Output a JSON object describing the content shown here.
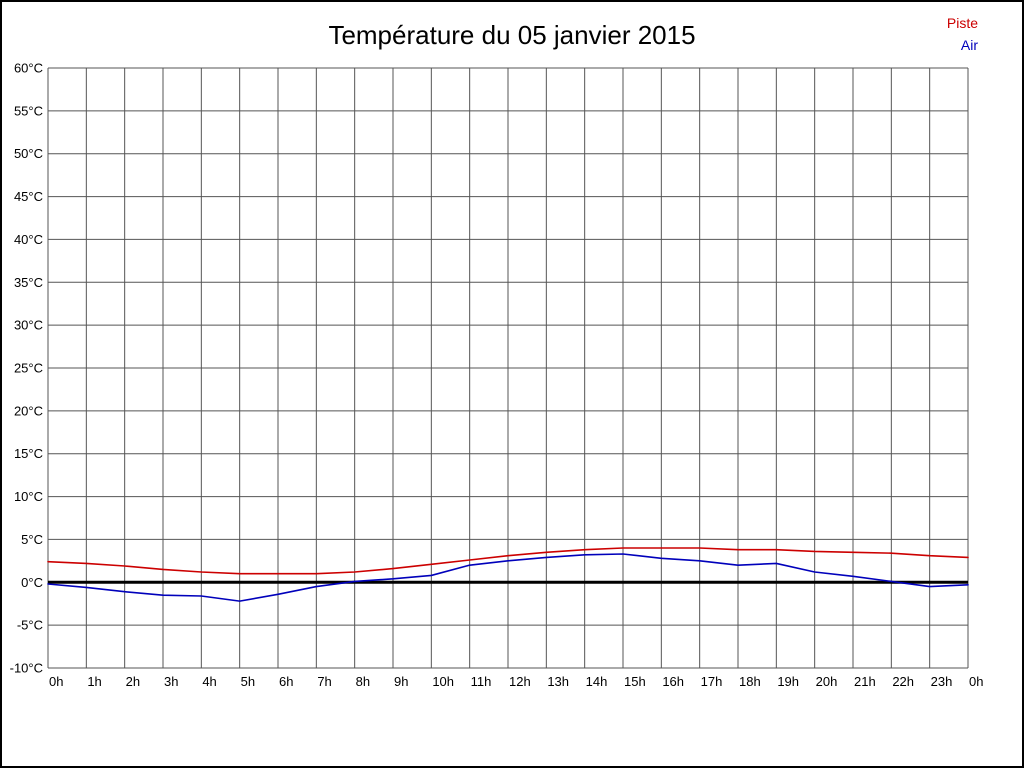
{
  "chart_data": {
    "type": "line",
    "title": "Température du 05 janvier 2015",
    "xlabel": "",
    "ylabel": "",
    "ylim": [
      -10,
      60
    ],
    "ytick_step": 5,
    "ytick_suffix": "°C",
    "grid": true,
    "grid_color": "#555555",
    "zero_line_color": "#000000",
    "legend_position": "top-right",
    "x_labels": [
      "0h",
      "1h",
      "2h",
      "3h",
      "4h",
      "5h",
      "6h",
      "7h",
      "8h",
      "9h",
      "10h",
      "11h",
      "12h",
      "13h",
      "14h",
      "15h",
      "16h",
      "17h",
      "18h",
      "19h",
      "20h",
      "21h",
      "22h",
      "23h",
      "0h"
    ],
    "series": [
      {
        "name": "Piste",
        "color": "#cc0000",
        "values": [
          2.4,
          2.2,
          1.9,
          1.5,
          1.2,
          1.0,
          1.0,
          1.0,
          1.2,
          1.6,
          2.1,
          2.6,
          3.1,
          3.5,
          3.8,
          4.0,
          4.0,
          4.0,
          3.8,
          3.8,
          3.6,
          3.5,
          3.4,
          3.1,
          2.9
        ]
      },
      {
        "name": "Air",
        "color": "#0000bb",
        "values": [
          -0.2,
          -0.6,
          -1.1,
          -1.5,
          -1.6,
          -2.2,
          -1.4,
          -0.5,
          0.1,
          0.4,
          0.8,
          2.0,
          2.5,
          2.9,
          3.2,
          3.3,
          2.8,
          2.5,
          2.0,
          2.2,
          1.2,
          0.7,
          0.1,
          -0.5,
          -0.3
        ]
      }
    ]
  }
}
